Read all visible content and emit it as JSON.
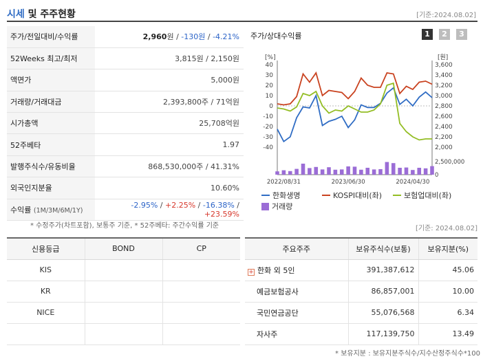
{
  "header": {
    "title_accent": "시세",
    "title_rest": " 및 주주현황",
    "date": "[기준:2024.08.02]"
  },
  "quote": {
    "price_label": "주가/전일대비/수익률",
    "price": "2,960",
    "price_unit": "원 /",
    "change": " -130원",
    "rate_sep": " /",
    "rate": " -4.21%",
    "week52_label": "52Weeks 최고/최저",
    "week52_value": "3,815원 / 2,150원",
    "par_label": "액면가",
    "par_value": "5,000원",
    "volume_label": "거래량/거래대금",
    "volume_value": "2,393,800주 / 71억원",
    "mcap_label": "시가총액",
    "mcap_value": "25,708억원",
    "beta_label": "52주베타",
    "beta_value": "1.97",
    "shares_label": "발행주식수/유동비율",
    "shares_value": "868,530,000주 / 41.31%",
    "foreign_label": "외국인지분율",
    "foreign_value": "10.60%",
    "return_label": "수익률",
    "return_periods": "(1M/3M/6M/1Y)",
    "returns": [
      "-2.95%",
      "+2.25%",
      "-16.38%",
      "+23.59%"
    ],
    "returns_sep": " / "
  },
  "note1": "* 수정주가(차트포함), 보통주 기준, * 52주베타: 주간수익률 기준",
  "chart": {
    "title": "주가/상대수익률",
    "period_buttons": [
      "1",
      "2",
      "3"
    ],
    "legend": {
      "series1": "한화생명",
      "series2": "KOSPI대비(좌)",
      "series3": "보험업대비(좌)",
      "volume": "거래량"
    },
    "colors": {
      "price": "#2f6cc4",
      "kospi": "#c9421f",
      "insurance": "#93bd23",
      "volume": "#9b6dd6"
    }
  },
  "chart_data": {
    "type": "line",
    "title": "주가/상대수익률",
    "left_axis_unit": "[%]",
    "right_axis_unit": "[원]",
    "y_left_ticks": [
      "40",
      "30",
      "20",
      "10",
      "0",
      "-10",
      "-20",
      "-30",
      "-40"
    ],
    "y_left_range": [
      -40,
      40
    ],
    "y_right_ticks": [
      "3,600",
      "3,400",
      "3,200",
      "3,000",
      "2,800",
      "2,600",
      "2,400",
      "2,200",
      "2,000"
    ],
    "y_right_range": [
      2000,
      3600
    ],
    "volume_tick_labels": [
      "2,500,000",
      "0"
    ],
    "volume_range": [
      0,
      2500000
    ],
    "x_labels": [
      "2022/08/31",
      "2023/06/30",
      "2024/04/30"
    ],
    "x_label_index": [
      1,
      11,
      21
    ],
    "series": [
      {
        "name": "한화생명",
        "axis": "right",
        "values": [
          2350,
          2110,
          2200,
          2570,
          2780,
          2760,
          3000,
          2420,
          2500,
          2540,
          2600,
          2380,
          2530,
          2820,
          2770,
          2770,
          2850,
          3050,
          3150,
          2830,
          2930,
          2800,
          2970,
          3070,
          2960
        ]
      },
      {
        "name": "KOSPI대비(좌)",
        "axis": "left",
        "values": [
          2,
          1,
          2,
          9,
          31,
          23,
          32,
          10,
          15,
          14,
          13,
          7,
          14,
          27,
          20,
          18,
          18,
          32,
          31,
          12,
          19,
          16,
          23,
          24,
          21
        ]
      },
      {
        "name": "보험업대비(좌)",
        "axis": "left",
        "values": [
          -2,
          -3,
          -5,
          -1,
          12,
          10,
          14,
          0,
          -7,
          -4,
          -5,
          0,
          -3,
          -6,
          -6,
          -4,
          2,
          20,
          22,
          -17,
          -25,
          -30,
          -33,
          -32,
          -32
        ]
      },
      {
        "name": "거래량",
        "axis": "volume",
        "values": [
          600000,
          800000,
          650000,
          1050000,
          2000000,
          1200000,
          1400000,
          950000,
          1350000,
          900000,
          950000,
          1500000,
          1450000,
          900000,
          1250000,
          950000,
          1000000,
          2300000,
          2100000,
          1250000,
          1300000,
          850000,
          1250000,
          1150000,
          1550000
        ]
      }
    ]
  },
  "date2": "[기준: 2024.08.02]",
  "credit": {
    "headers": [
      "신용등급",
      "BOND",
      "CP"
    ],
    "rows": [
      [
        "KIS",
        "",
        ""
      ],
      [
        "KR",
        "",
        ""
      ],
      [
        "NICE",
        "",
        ""
      ],
      [
        "",
        "",
        ""
      ]
    ]
  },
  "holders": {
    "headers": [
      "주요주주",
      "보유주식수(보통)",
      "보유지분(%)"
    ],
    "rows": [
      [
        "한화 외 5인",
        "391,387,612",
        "45.06"
      ],
      [
        "예금보험공사",
        "86,857,001",
        "10.00"
      ],
      [
        "국민연금공단",
        "55,076,568",
        "6.34"
      ],
      [
        "자사주",
        "117,139,750",
        "13.49"
      ]
    ],
    "expand_symbol": "+"
  },
  "note2": "* 보유지분 : 보유지분주식수/지수산정주식수*100"
}
